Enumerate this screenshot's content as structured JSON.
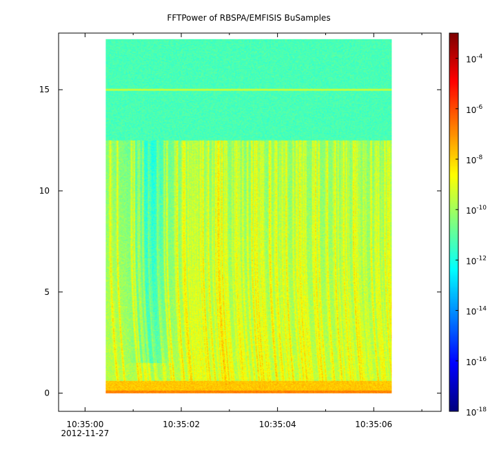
{
  "chart_data": {
    "type": "heatmap",
    "title": "FFTPower of RBSPA/EMFISIS  BuSamples",
    "xlabel": "",
    "ylabel": "",
    "x_ticks": [
      {
        "value": 0,
        "label": "10:35:00",
        "sublabel": "2012-11-27"
      },
      {
        "value": 2,
        "label": "10:35:02",
        "sublabel": ""
      },
      {
        "value": 4,
        "label": "10:35:04",
        "sublabel": ""
      },
      {
        "value": 6,
        "label": "10:35:06",
        "sublabel": ""
      }
    ],
    "x_minor_ticks": [
      1,
      3,
      5,
      7
    ],
    "xlim_seconds_after_10_35_00": [
      -0.55,
      7.4
    ],
    "y_ticks": [
      0,
      5,
      10,
      15
    ],
    "ylim": [
      -0.9,
      17.8
    ],
    "data_extent": {
      "x": [
        0.43,
        6.37
      ],
      "y": [
        0,
        17.5
      ]
    },
    "colorbar": {
      "scale": "log",
      "range": [
        1e-18,
        0.001
      ],
      "tick_exponents": [
        -18,
        -16,
        -14,
        -12,
        -10,
        -8,
        -6,
        -4
      ],
      "tick_base": "10"
    },
    "features": {
      "background_level_exponent": -11,
      "upper_band_level_exponent": -11.3,
      "horizontal_line_y": 15,
      "activity_top_y": 12.2
    }
  }
}
